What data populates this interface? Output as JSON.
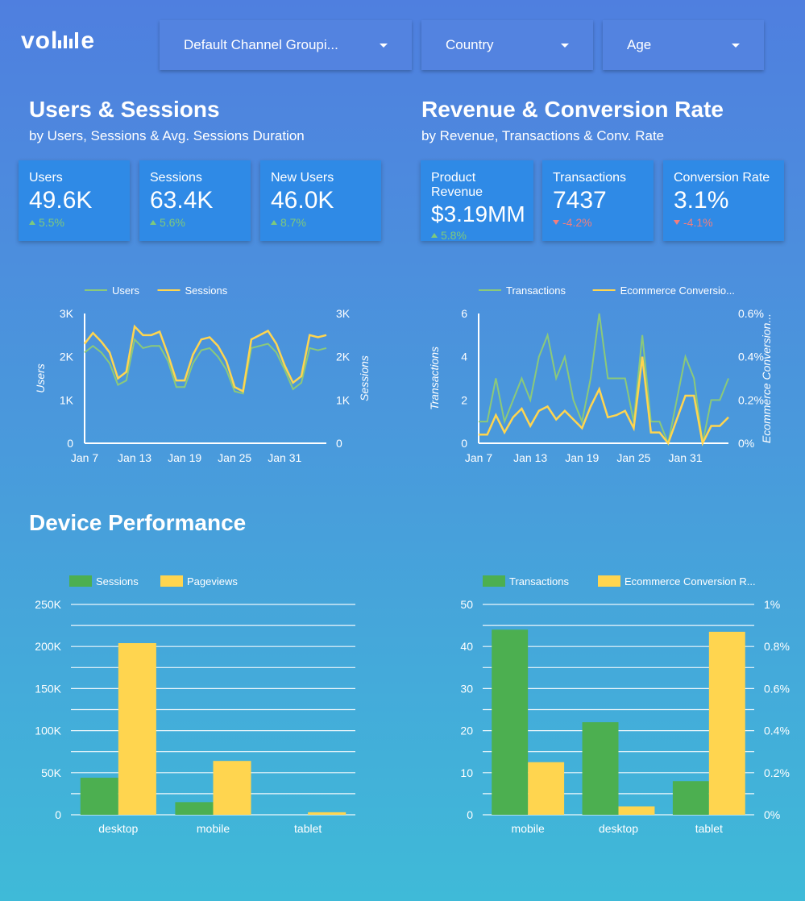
{
  "brand": {
    "logo_text": "vol",
    "logo_suffix": "e"
  },
  "filters": [
    {
      "label": "Default Channel Groupi..."
    },
    {
      "label": "Country"
    },
    {
      "label": "Age"
    }
  ],
  "users_section": {
    "title": "Users & Sessions",
    "subtitle": "by Users, Sessions & Avg. Sessions Duration",
    "cards": [
      {
        "label": "Users",
        "value": "49.6K",
        "delta": "5.5%",
        "direction": "up"
      },
      {
        "label": "Sessions",
        "value": "63.4K",
        "delta": "5.6%",
        "direction": "up"
      },
      {
        "label": "New Users",
        "value": "46.0K",
        "delta": "8.7%",
        "direction": "up"
      }
    ]
  },
  "revenue_section": {
    "title": "Revenue & Conversion Rate",
    "subtitle": "by Revenue, Transactions & Conv. Rate",
    "cards": [
      {
        "label": "Product Revenue",
        "value": "$3.19MM",
        "delta": "5.8%",
        "direction": "up"
      },
      {
        "label": "Transactions",
        "value": "7437",
        "delta": "-4.2%",
        "direction": "down"
      },
      {
        "label": "Conversion Rate",
        "value": "3.1%",
        "delta": "-4.1%",
        "direction": "down"
      }
    ]
  },
  "device_section": {
    "title": "Device Performance"
  },
  "colors": {
    "green": "#8bc97a",
    "yellow": "#ffd54f",
    "bar_green": "#4caf50",
    "bar_yellow": "#ffd54f"
  },
  "chart_data": [
    {
      "type": "line",
      "legend": [
        "Users",
        "Sessions"
      ],
      "ylabel_left": "Users",
      "ylabel_right": "Sessions",
      "ylim": [
        0,
        3000
      ],
      "yticks_left": [
        "0",
        "1K",
        "2K",
        "3K"
      ],
      "yticks_right": [
        "0",
        "1K",
        "2K",
        "3K"
      ],
      "xticks": [
        "Jan 7",
        "Jan 13",
        "Jan 19",
        "Jan 25",
        "Jan 31"
      ],
      "series": [
        {
          "name": "Users",
          "values": [
            2100,
            2250,
            2100,
            1850,
            1350,
            1450,
            2400,
            2200,
            2250,
            2250,
            1900,
            1300,
            1300,
            1850,
            2150,
            2200,
            2000,
            1700,
            1200,
            1150,
            2200,
            2250,
            2300,
            2100,
            1700,
            1250,
            1400,
            2200,
            2150,
            2200
          ]
        },
        {
          "name": "Sessions",
          "values": [
            2300,
            2550,
            2350,
            2100,
            1500,
            1650,
            2700,
            2500,
            2500,
            2580,
            2050,
            1450,
            1450,
            2050,
            2400,
            2450,
            2250,
            1900,
            1300,
            1200,
            2400,
            2500,
            2600,
            2300,
            1800,
            1400,
            1550,
            2500,
            2450,
            2500
          ]
        }
      ]
    },
    {
      "type": "line",
      "legend": [
        "Transactions",
        "Ecommerce Conversio..."
      ],
      "ylabel_left": "Transactions",
      "ylabel_right": "Ecommerce Conversion...",
      "ylim_left": [
        0,
        6
      ],
      "ylim_right": [
        0,
        0.6
      ],
      "yticks_left": [
        "0",
        "2",
        "4",
        "6"
      ],
      "yticks_right": [
        "0%",
        "0.2%",
        "0.4%",
        "0.6%"
      ],
      "xticks": [
        "Jan 7",
        "Jan 13",
        "Jan 19",
        "Jan 25",
        "Jan 31"
      ],
      "series": [
        {
          "name": "Transactions",
          "values": [
            1,
            1,
            3,
            1,
            2,
            3,
            2,
            4,
            5,
            3,
            4,
            2,
            1,
            3,
            6,
            3,
            3,
            3,
            1,
            5,
            1,
            1,
            0,
            2,
            4,
            3,
            0,
            2,
            2,
            3
          ]
        },
        {
          "name": "Ecommerce Conversion Rate",
          "values": [
            0.04,
            0.04,
            0.13,
            0.05,
            0.12,
            0.16,
            0.08,
            0.15,
            0.17,
            0.11,
            0.15,
            0.11,
            0.07,
            0.17,
            0.25,
            0.12,
            0.13,
            0.15,
            0.07,
            0.4,
            0.05,
            0.05,
            0,
            0.11,
            0.22,
            0.22,
            0,
            0.08,
            0.08,
            0.12
          ]
        }
      ]
    },
    {
      "type": "bar",
      "legend": [
        "Sessions",
        "Pageviews"
      ],
      "categories": [
        "desktop",
        "mobile",
        "tablet"
      ],
      "ylim": [
        0,
        250000
      ],
      "yticks": [
        "0",
        "50K",
        "100K",
        "150K",
        "200K",
        "250K"
      ],
      "series": [
        {
          "name": "Sessions",
          "values": [
            44000,
            15000,
            0
          ]
        },
        {
          "name": "Pageviews",
          "values": [
            204000,
            64000,
            3000
          ]
        }
      ]
    },
    {
      "type": "bar",
      "legend": [
        "Transactions",
        "Ecommerce Conversion R..."
      ],
      "categories": [
        "mobile",
        "desktop",
        "tablet"
      ],
      "ylim_left": [
        0,
        50
      ],
      "ylim_right": [
        0,
        1
      ],
      "yticks_left": [
        "0",
        "10",
        "20",
        "30",
        "40",
        "50"
      ],
      "yticks_right": [
        "0%",
        "0.2%",
        "0.4%",
        "0.6%",
        "0.8%",
        "1%"
      ],
      "series": [
        {
          "name": "Transactions",
          "values": [
            44,
            22,
            8
          ]
        },
        {
          "name": "Ecommerce Conversion Rate",
          "values": [
            0.25,
            0.04,
            0.87
          ]
        }
      ]
    }
  ]
}
